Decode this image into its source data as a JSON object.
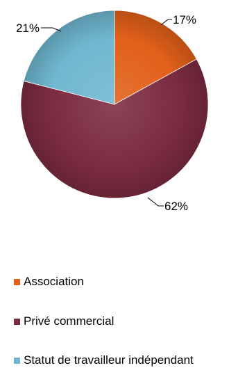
{
  "chart_data": {
    "type": "pie",
    "slices": [
      {
        "name": "Association",
        "value": 17,
        "label": "17%",
        "color": "#E2601A"
      },
      {
        "name": "Privé commercial",
        "value": 62,
        "label": "62%",
        "color": "#7B2B3F"
      },
      {
        "name": "Statut de travailleur indépendant",
        "value": 21,
        "label": "21%",
        "color": "#6FB7CF"
      }
    ],
    "legend_position": "bottom"
  }
}
